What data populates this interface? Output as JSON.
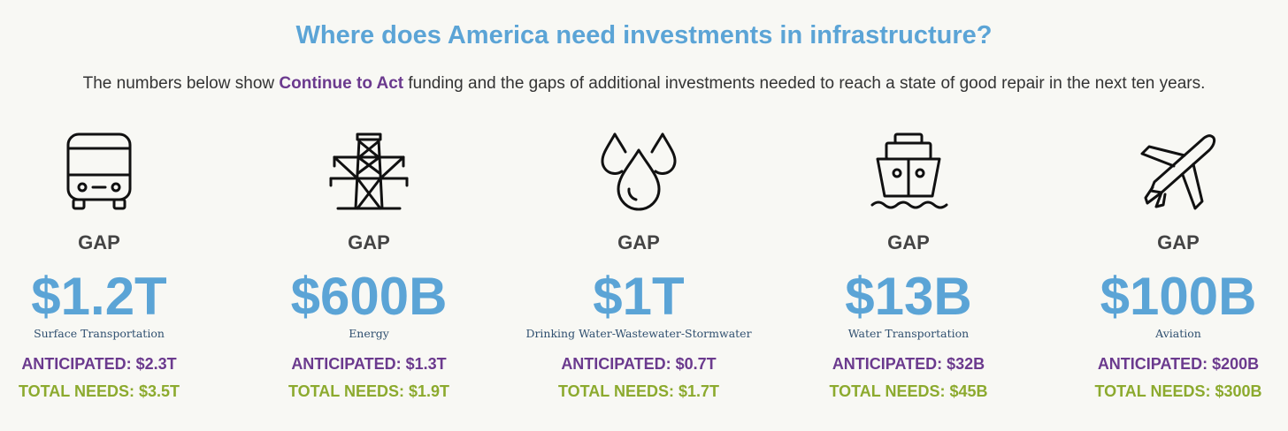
{
  "header": {
    "title": "Where does America need investments in infrastructure?",
    "subtitle_prefix": "The numbers below show ",
    "subtitle_highlight": "Continue to Act",
    "subtitle_suffix": " funding and the gaps of additional investments needed to reach a state of good repair in the next ten years."
  },
  "colors": {
    "title": "#5ba4d6",
    "highlight": "#6b3a8e",
    "anticipated": "#6b3a8e",
    "total": "#8caa2e",
    "gap_value": "#5ba4d6"
  },
  "columns": [
    {
      "icon": "bus-icon",
      "gap_label": "GAP",
      "gap_value": "$1.2T",
      "category": "Surface Transportation",
      "anticipated": "ANTICIPATED: $2.3T",
      "total": "TOTAL NEEDS: $3.5T"
    },
    {
      "icon": "power-tower-icon",
      "gap_label": "GAP",
      "gap_value": "$600B",
      "category": "Energy",
      "anticipated": "ANTICIPATED: $1.3T",
      "total": "TOTAL NEEDS: $1.9T"
    },
    {
      "icon": "water-drops-icon",
      "gap_label": "GAP",
      "gap_value": "$1T",
      "category": "Drinking Water-Wastewater-Stormwater",
      "anticipated": "ANTICIPATED: $0.7T",
      "total": "TOTAL NEEDS: $1.7T"
    },
    {
      "icon": "ship-icon",
      "gap_label": "GAP",
      "gap_value": "$13B",
      "category": "Water Transportation",
      "anticipated": "ANTICIPATED: $32B",
      "total": "TOTAL NEEDS: $45B"
    },
    {
      "icon": "airplane-icon",
      "gap_label": "GAP",
      "gap_value": "$100B",
      "category": "Aviation",
      "anticipated": "ANTICIPATED: $200B",
      "total": "TOTAL NEEDS: $300B"
    }
  ]
}
